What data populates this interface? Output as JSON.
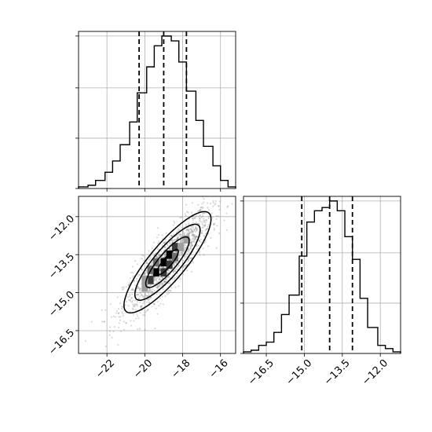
{
  "chart_data": {
    "type": "corner",
    "grid": true,
    "parameters": [
      {
        "id": "p1",
        "range": [
          -23.5,
          -15.2
        ],
        "ticks": [
          -22,
          -20,
          -18,
          -16
        ],
        "tick_labels": [
          "−22",
          "−20",
          "−18",
          "−16"
        ],
        "quantiles": [
          -20.3,
          -19.0,
          -17.8
        ],
        "histogram": {
          "bin_edges": [
            -23.5,
            -23.0,
            -22.6,
            -22.1,
            -21.7,
            -21.3,
            -20.8,
            -20.4,
            -19.9,
            -19.5,
            -19.1,
            -18.6,
            -18.2,
            -17.8,
            -17.3,
            -16.9,
            -16.4,
            -16.0,
            -15.6,
            -15.2
          ],
          "values": [
            0.01,
            0.02,
            0.05,
            0.1,
            0.17,
            0.27,
            0.41,
            0.59,
            0.75,
            0.88,
            0.94,
            0.91,
            0.78,
            0.6,
            0.42,
            0.26,
            0.14,
            0.05,
            0.01
          ]
        }
      },
      {
        "id": "p2",
        "range": [
          -17.4,
          -11.2
        ],
        "ticks": [
          -16.5,
          -15.0,
          -13.5,
          -12.0
        ],
        "tick_labels": [
          "−16.5",
          "−15.0",
          "−13.5",
          "−12.0"
        ],
        "quantiles": [
          -15.1,
          -14.0,
          -13.1
        ],
        "histogram": {
          "bin_edges": [
            -17.4,
            -17.1,
            -16.8,
            -16.5,
            -16.2,
            -15.9,
            -15.6,
            -15.2,
            -14.9,
            -14.6,
            -14.3,
            -14.0,
            -13.7,
            -13.4,
            -13.1,
            -12.8,
            -12.5,
            -12.1,
            -11.8,
            -11.5,
            -11.2
          ],
          "values": [
            0.01,
            0.02,
            0.05,
            0.07,
            0.13,
            0.24,
            0.36,
            0.6,
            0.81,
            0.88,
            0.9,
            0.94,
            0.88,
            0.72,
            0.58,
            0.34,
            0.16,
            0.05,
            0.03,
            0.01
          ]
        }
      }
    ],
    "scatter_2d": {
      "x_param": "p1",
      "y_param": "p2",
      "center": [
        -18.8,
        -13.8
      ],
      "sigma": [
        1.15,
        1.0
      ],
      "correlation": 0.85,
      "n_points": 1500,
      "contour_levels": [
        "0.5-sigma",
        "1-sigma",
        "1.5-sigma",
        "2-sigma"
      ],
      "point_color": "#777777",
      "density_colors": [
        "#c8c8c8",
        "#9e9e9e",
        "#6e6e6e",
        "#3a3a3a",
        "#000000"
      ]
    }
  }
}
